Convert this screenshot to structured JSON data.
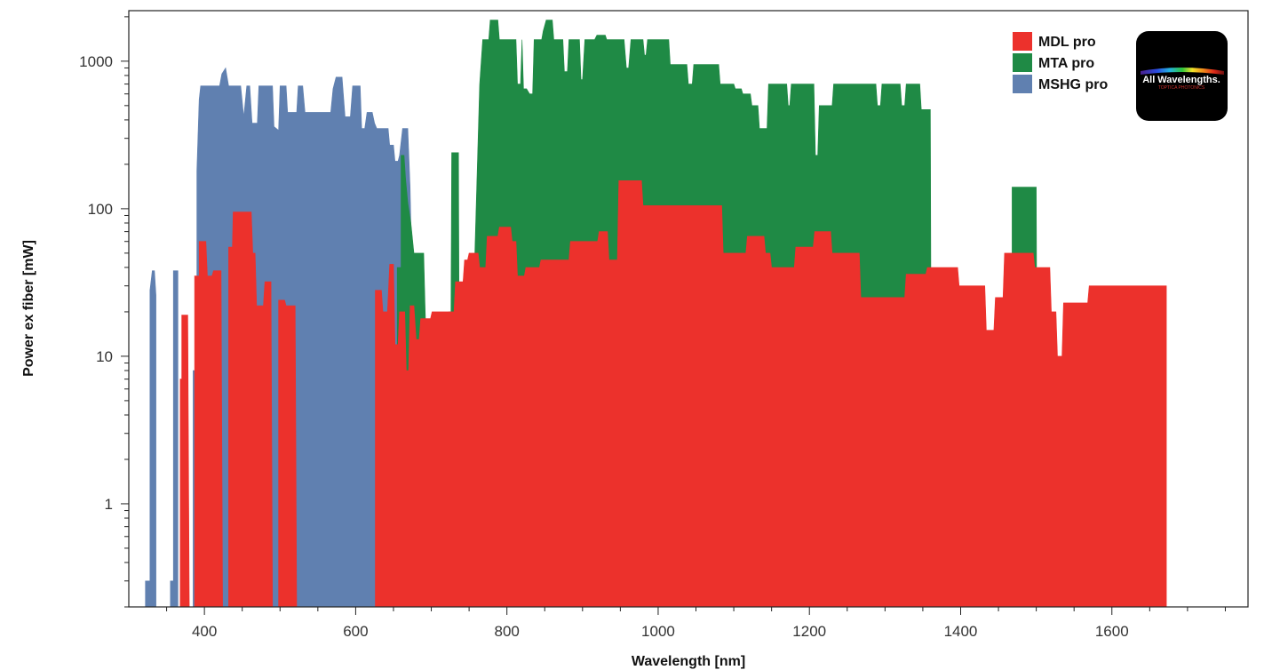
{
  "chart_data": {
    "type": "area",
    "xlabel": "Wavelength [nm]",
    "ylabel": "Power ex fiber [mW]",
    "xlim": [
      300,
      1780
    ],
    "ylim": [
      0.2,
      2200
    ],
    "y_scale": "log",
    "x_ticks": [
      400,
      600,
      800,
      1000,
      1200,
      1400,
      1600
    ],
    "y_ticks": [
      1,
      10,
      100,
      1000
    ],
    "legend_position": "top-right",
    "series": [
      {
        "name": "MSHG pro",
        "color": "#6080b0",
        "points": [
          [
            322,
            0.2
          ],
          [
            322,
            0.3
          ],
          [
            328,
            0.3
          ],
          [
            328,
            28
          ],
          [
            331,
            38
          ],
          [
            334,
            38
          ],
          [
            336,
            26
          ],
          [
            336,
            0.2
          ],
          [
            355,
            0.2
          ],
          [
            355,
            0.3
          ],
          [
            359,
            0.3
          ],
          [
            359,
            38
          ],
          [
            365,
            38
          ],
          [
            365,
            0.2
          ],
          [
            372,
            0.2
          ],
          [
            372,
            8
          ],
          [
            376,
            8
          ],
          [
            376,
            0.2
          ],
          [
            385,
            0.2
          ],
          [
            385,
            8
          ],
          [
            390,
            8
          ],
          [
            390,
            180
          ],
          [
            393,
            550
          ],
          [
            395,
            680
          ],
          [
            420,
            680
          ],
          [
            423,
            820
          ],
          [
            428,
            900
          ],
          [
            432,
            680
          ],
          [
            448,
            680
          ],
          [
            452,
            420
          ],
          [
            456,
            680
          ],
          [
            460,
            680
          ],
          [
            463,
            380
          ],
          [
            470,
            380
          ],
          [
            472,
            680
          ],
          [
            490,
            680
          ],
          [
            492,
            360
          ],
          [
            498,
            340
          ],
          [
            500,
            680
          ],
          [
            508,
            680
          ],
          [
            510,
            450
          ],
          [
            522,
            450
          ],
          [
            524,
            680
          ],
          [
            530,
            680
          ],
          [
            533,
            450
          ],
          [
            567,
            450
          ],
          [
            570,
            650
          ],
          [
            574,
            780
          ],
          [
            582,
            780
          ],
          [
            586,
            420
          ],
          [
            593,
            420
          ],
          [
            596,
            680
          ],
          [
            606,
            680
          ],
          [
            608,
            350
          ],
          [
            612,
            350
          ],
          [
            615,
            450
          ],
          [
            622,
            450
          ],
          [
            625,
            380
          ],
          [
            628,
            350
          ],
          [
            643,
            350
          ],
          [
            645,
            270
          ],
          [
            650,
            270
          ],
          [
            652,
            210
          ],
          [
            656,
            210
          ],
          [
            658,
            230
          ],
          [
            662,
            350
          ],
          [
            669,
            350
          ],
          [
            672,
            140
          ],
          [
            675,
            25
          ],
          [
            678,
            12
          ],
          [
            682,
            0.2
          ]
        ]
      },
      {
        "name": "MTA pro",
        "color": "#1f8a45",
        "points": [
          [
            655,
            0.2
          ],
          [
            655,
            40
          ],
          [
            660,
            40
          ],
          [
            660,
            230
          ],
          [
            664,
            230
          ],
          [
            666,
            160
          ],
          [
            669,
            110
          ],
          [
            673,
            80
          ],
          [
            677,
            50
          ],
          [
            690,
            50
          ],
          [
            692,
            20
          ],
          [
            694,
            10
          ],
          [
            696,
            0.2
          ],
          [
            723,
            0.2
          ],
          [
            723,
            20
          ],
          [
            726,
            20
          ],
          [
            727,
            240
          ],
          [
            736,
            240
          ],
          [
            738,
            0.2
          ],
          [
            757,
            0.2
          ],
          [
            757,
            40
          ],
          [
            764,
            700
          ],
          [
            768,
            1400
          ],
          [
            776,
            1400
          ],
          [
            778,
            1900
          ],
          [
            788,
            1900
          ],
          [
            790,
            1400
          ],
          [
            812,
            1400
          ],
          [
            814,
            700
          ],
          [
            818,
            700
          ],
          [
            820,
            1400
          ],
          [
            822,
            650
          ],
          [
            826,
            650
          ],
          [
            830,
            600
          ],
          [
            834,
            600
          ],
          [
            836,
            1400
          ],
          [
            846,
            1400
          ],
          [
            848,
            1600
          ],
          [
            852,
            1900
          ],
          [
            860,
            1900
          ],
          [
            862,
            1400
          ],
          [
            874,
            1400
          ],
          [
            876,
            850
          ],
          [
            880,
            850
          ],
          [
            882,
            1400
          ],
          [
            896,
            1400
          ],
          [
            898,
            750
          ],
          [
            900,
            750
          ],
          [
            903,
            1400
          ],
          [
            916,
            1400
          ],
          [
            919,
            1500
          ],
          [
            930,
            1500
          ],
          [
            932,
            1400
          ],
          [
            955,
            1400
          ],
          [
            958,
            900
          ],
          [
            961,
            900
          ],
          [
            964,
            1400
          ],
          [
            980,
            1400
          ],
          [
            982,
            1100
          ],
          [
            984,
            1100
          ],
          [
            986,
            1400
          ],
          [
            1014,
            1400
          ],
          [
            1016,
            950
          ],
          [
            1038,
            950
          ],
          [
            1040,
            700
          ],
          [
            1045,
            700
          ],
          [
            1047,
            950
          ],
          [
            1080,
            950
          ],
          [
            1082,
            700
          ],
          [
            1100,
            700
          ],
          [
            1102,
            650
          ],
          [
            1110,
            650
          ],
          [
            1112,
            600
          ],
          [
            1122,
            600
          ],
          [
            1124,
            500
          ],
          [
            1132,
            500
          ],
          [
            1134,
            350
          ],
          [
            1144,
            350
          ],
          [
            1146,
            700
          ],
          [
            1170,
            700
          ],
          [
            1172,
            500
          ],
          [
            1174,
            500
          ],
          [
            1176,
            700
          ],
          [
            1206,
            700
          ],
          [
            1208,
            230
          ],
          [
            1211,
            230
          ],
          [
            1213,
            500
          ],
          [
            1230,
            500
          ],
          [
            1232,
            700
          ],
          [
            1288,
            700
          ],
          [
            1290,
            500
          ],
          [
            1294,
            500
          ],
          [
            1296,
            700
          ],
          [
            1320,
            700
          ],
          [
            1322,
            500
          ],
          [
            1326,
            500
          ],
          [
            1328,
            700
          ],
          [
            1346,
            700
          ],
          [
            1348,
            470
          ],
          [
            1360,
            470
          ],
          [
            1362,
            0.2
          ],
          [
            1468,
            0.2
          ],
          [
            1468,
            140
          ],
          [
            1500,
            140
          ],
          [
            1502,
            0.2
          ]
        ]
      },
      {
        "name": "MDL pro",
        "color": "#ec312c",
        "points": [
          [
            368,
            0.2
          ],
          [
            368,
            7
          ],
          [
            370,
            7
          ],
          [
            370,
            19
          ],
          [
            378,
            19
          ],
          [
            380,
            0.2
          ],
          [
            387,
            0.2
          ],
          [
            387,
            35
          ],
          [
            393,
            35
          ],
          [
            393,
            60
          ],
          [
            402,
            60
          ],
          [
            404,
            35
          ],
          [
            410,
            35
          ],
          [
            412,
            38
          ],
          [
            422,
            38
          ],
          [
            424,
            0.2
          ],
          [
            432,
            0.2
          ],
          [
            432,
            55
          ],
          [
            437,
            55
          ],
          [
            438,
            95
          ],
          [
            462,
            95
          ],
          [
            464,
            50
          ],
          [
            467,
            50
          ],
          [
            469,
            22
          ],
          [
            478,
            22
          ],
          [
            480,
            32
          ],
          [
            488,
            32
          ],
          [
            490,
            0.2
          ],
          [
            498,
            0.2
          ],
          [
            498,
            24
          ],
          [
            506,
            24
          ],
          [
            508,
            22
          ],
          [
            520,
            22
          ],
          [
            522,
            0.2
          ],
          [
            626,
            0.2
          ],
          [
            626,
            28
          ],
          [
            634,
            28
          ],
          [
            636,
            20
          ],
          [
            642,
            20
          ],
          [
            645,
            42
          ],
          [
            650,
            42
          ],
          [
            652,
            12
          ],
          [
            656,
            12
          ],
          [
            658,
            20
          ],
          [
            665,
            20
          ],
          [
            667,
            8
          ],
          [
            670,
            8
          ],
          [
            672,
            22
          ],
          [
            677,
            22
          ],
          [
            680,
            13
          ],
          [
            684,
            13
          ],
          [
            686,
            18
          ],
          [
            699,
            18
          ],
          [
            701,
            20
          ],
          [
            730,
            20
          ],
          [
            732,
            32
          ],
          [
            742,
            32
          ],
          [
            744,
            45
          ],
          [
            748,
            45
          ],
          [
            750,
            50
          ],
          [
            762,
            50
          ],
          [
            764,
            40
          ],
          [
            772,
            40
          ],
          [
            774,
            65
          ],
          [
            788,
            65
          ],
          [
            790,
            75
          ],
          [
            805,
            75
          ],
          [
            807,
            60
          ],
          [
            812,
            60
          ],
          [
            814,
            35
          ],
          [
            823,
            35
          ],
          [
            825,
            40
          ],
          [
            843,
            40
          ],
          [
            845,
            45
          ],
          [
            882,
            45
          ],
          [
            884,
            60
          ],
          [
            920,
            60
          ],
          [
            922,
            70
          ],
          [
            933,
            70
          ],
          [
            935,
            45
          ],
          [
            946,
            45
          ],
          [
            948,
            155
          ],
          [
            978,
            155
          ],
          [
            980,
            105
          ],
          [
            1084,
            105
          ],
          [
            1086,
            50
          ],
          [
            1116,
            50
          ],
          [
            1118,
            65
          ],
          [
            1140,
            65
          ],
          [
            1142,
            50
          ],
          [
            1148,
            50
          ],
          [
            1150,
            40
          ],
          [
            1180,
            40
          ],
          [
            1182,
            55
          ],
          [
            1205,
            55
          ],
          [
            1207,
            70
          ],
          [
            1228,
            70
          ],
          [
            1230,
            50
          ],
          [
            1266,
            50
          ],
          [
            1268,
            25
          ],
          [
            1326,
            25
          ],
          [
            1328,
            36
          ],
          [
            1354,
            36
          ],
          [
            1356,
            40
          ],
          [
            1396,
            40
          ],
          [
            1398,
            30
          ],
          [
            1432,
            30
          ],
          [
            1434,
            15
          ],
          [
            1444,
            15
          ],
          [
            1446,
            25
          ],
          [
            1456,
            25
          ],
          [
            1458,
            50
          ],
          [
            1496,
            50
          ],
          [
            1498,
            40
          ],
          [
            1518,
            40
          ],
          [
            1520,
            20
          ],
          [
            1526,
            20
          ],
          [
            1528,
            10
          ],
          [
            1534,
            10
          ],
          [
            1536,
            23
          ],
          [
            1568,
            23
          ],
          [
            1570,
            30
          ],
          [
            1672,
            30
          ],
          [
            1672,
            0.2
          ]
        ]
      }
    ]
  },
  "logo": {
    "text": "All Wavelengths.",
    "subtext": "TOPTICA PHOTONICS"
  }
}
